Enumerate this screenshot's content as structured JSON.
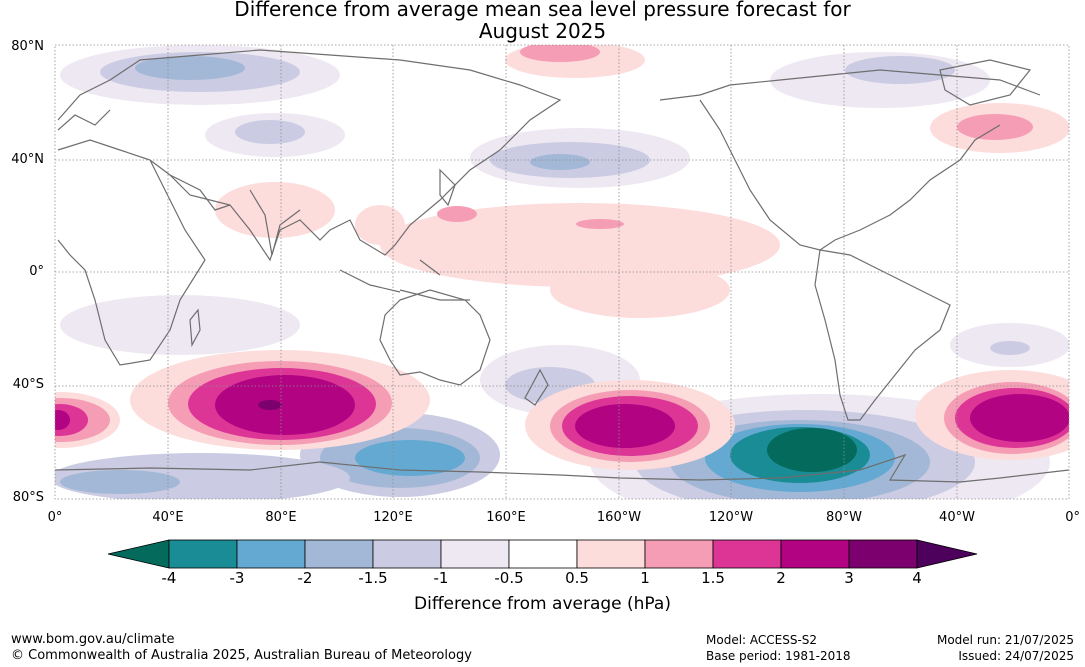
{
  "title_line1": "Difference from average mean sea level pressure forecast for",
  "title_line2": "August 2025",
  "latitudes": [
    "80°N",
    "40°N",
    "0°",
    "40°S",
    "80°S"
  ],
  "longitudes": [
    "0°",
    "40°E",
    "80°E",
    "120°E",
    "160°E",
    "160°W",
    "120°W",
    "80°W",
    "40°W",
    "0°"
  ],
  "colorbar": {
    "ticks": [
      "-4",
      "-3",
      "-2",
      "-1.5",
      "-1",
      "-0.5",
      "0.5",
      "1",
      "1.5",
      "2",
      "3",
      "4"
    ],
    "colors": [
      "#036a5c",
      "#1a8c95",
      "#64a9d1",
      "#a3b8d6",
      "#cbcbe3",
      "#eee8f2",
      "#ffffff",
      "#fddcdc",
      "#f59db5",
      "#dc3596",
      "#b20383",
      "#7d006f",
      "#4e005d"
    ],
    "label": "Difference from average (hPa)"
  },
  "footer": {
    "website": "www.bom.gov.au/climate",
    "copyright": "© Commonwealth of Australia 2025, Australian Bureau of Meteorology",
    "model": "Model: ACCESS-S2",
    "base_period": "Base period: 1981-2018",
    "model_run": "Model run: 21/07/2025",
    "issued": "Issued: 24/07/2025"
  }
}
